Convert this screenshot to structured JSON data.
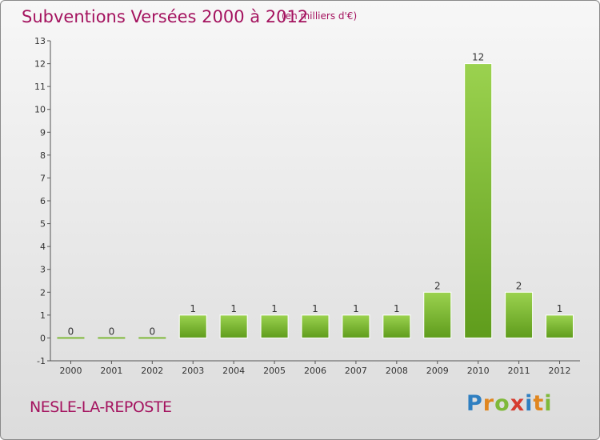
{
  "chart_data": {
    "type": "bar",
    "title": "Subventions Versées 2000 à 2012",
    "subtitle": "(en milliers d'€)",
    "categories": [
      "2000",
      "2001",
      "2002",
      "2003",
      "2004",
      "2005",
      "2006",
      "2007",
      "2008",
      "2009",
      "2010",
      "2011",
      "2012"
    ],
    "values": [
      0,
      0,
      0,
      1,
      1,
      1,
      1,
      1,
      1,
      2,
      12,
      2,
      1
    ],
    "value_labels": [
      "0",
      "0",
      "0",
      "1",
      "1",
      "1",
      "1",
      "1",
      "1",
      "2",
      "12",
      "2",
      "1"
    ],
    "ylim": [
      -1,
      13
    ],
    "yticks": [
      "-1",
      "0",
      "1",
      "2",
      "3",
      "4",
      "5",
      "6",
      "7",
      "8",
      "9",
      "10",
      "11",
      "12",
      "13"
    ],
    "grid": false,
    "xlabel": "",
    "ylabel": "",
    "bar_color": "#7fb93a",
    "title_color": "#a4135f"
  },
  "footer": {
    "commune": "NESLE-LA-REPOSTE",
    "brand_letters": [
      {
        "ch": "P",
        "color": "#2f7fc1"
      },
      {
        "ch": "r",
        "color": "#e0861f"
      },
      {
        "ch": "o",
        "color": "#7fb93a"
      },
      {
        "ch": "x",
        "color": "#d63c2f"
      },
      {
        "ch": "i",
        "color": "#2f7fc1"
      },
      {
        "ch": "t",
        "color": "#e0861f"
      },
      {
        "ch": "i",
        "color": "#7fb93a"
      }
    ]
  }
}
